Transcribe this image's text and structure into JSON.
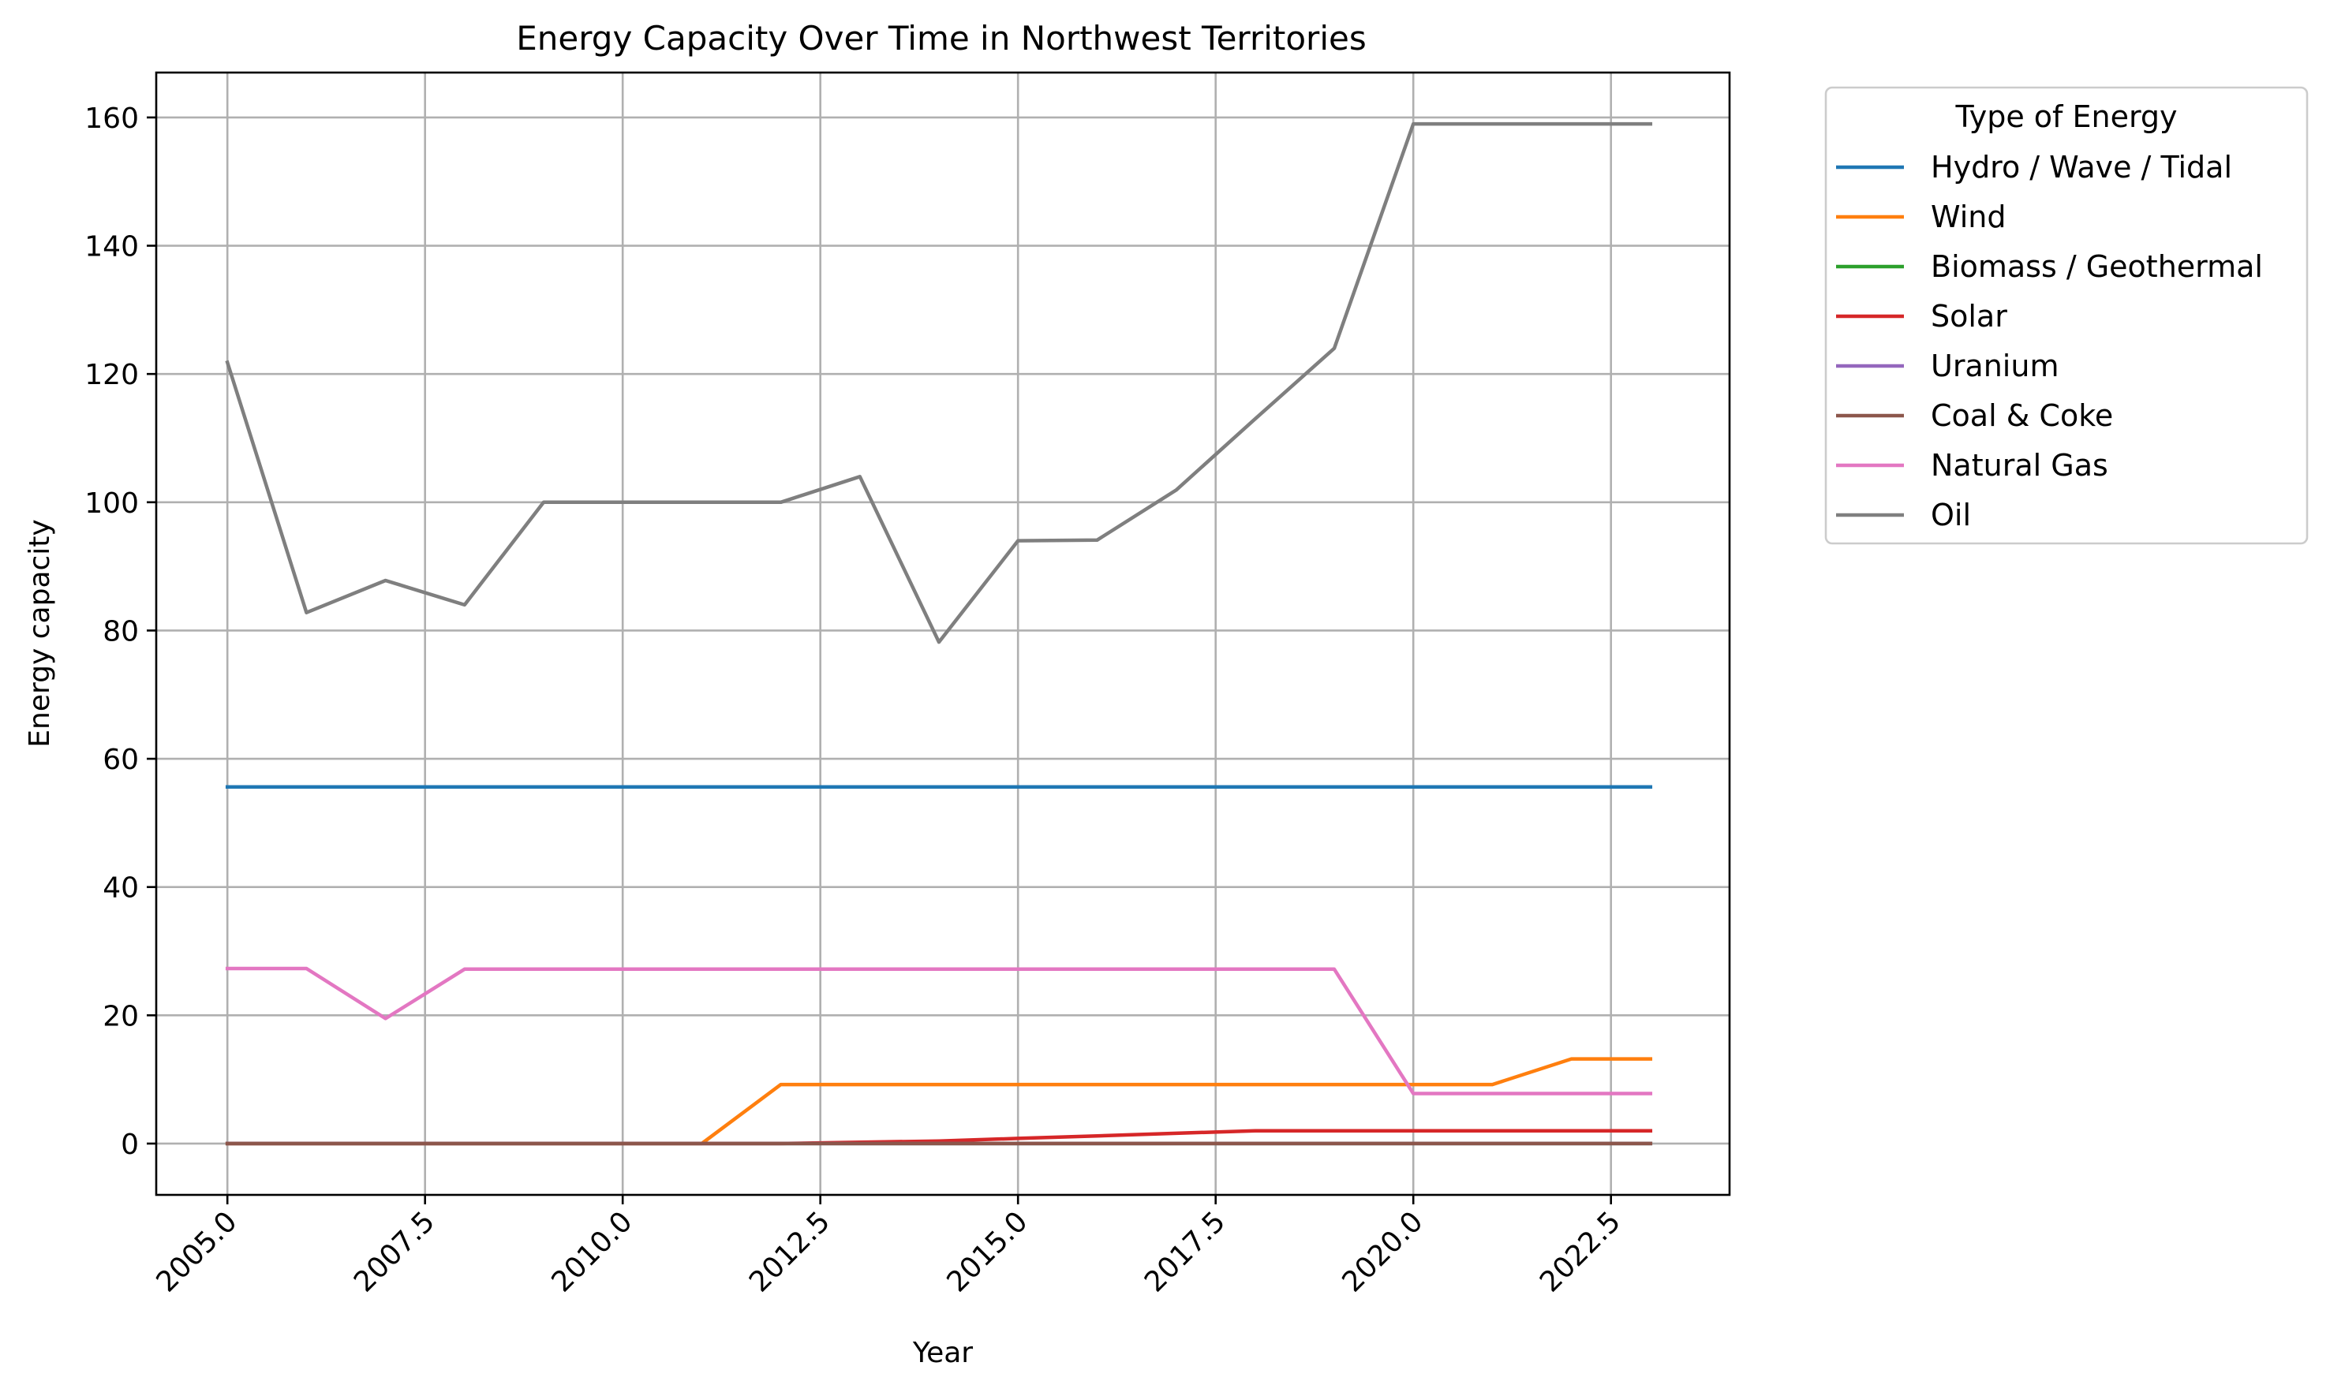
{
  "chart_data": {
    "type": "line",
    "title": "Energy Capacity Over Time in Northwest Territories",
    "xlabel": "Year",
    "ylabel": "Energy capacity",
    "xlim": [
      2004.1,
      2024.0
    ],
    "ylim": [
      -8,
      167
    ],
    "xticks": [
      2005.0,
      2007.5,
      2010.0,
      2012.5,
      2015.0,
      2017.5,
      2020.0,
      2022.5
    ],
    "xtick_labels": [
      "2005.0",
      "2007.5",
      "2010.0",
      "2012.5",
      "2015.0",
      "2017.5",
      "2020.0",
      "2022.5"
    ],
    "yticks": [
      0,
      20,
      40,
      60,
      80,
      100,
      120,
      140,
      160
    ],
    "ytick_labels": [
      "0",
      "20",
      "40",
      "60",
      "80",
      "100",
      "120",
      "140",
      "160"
    ],
    "grid": true,
    "legend": {
      "title": "Type of Energy",
      "placement": "outside upper right"
    },
    "x": [
      2005,
      2006,
      2007,
      2008,
      2009,
      2010,
      2011,
      2012,
      2013,
      2014,
      2015,
      2016,
      2017,
      2018,
      2019,
      2020,
      2021,
      2022,
      2023
    ],
    "series": [
      {
        "name": "Hydro / Wave / Tidal",
        "color": "#1f77b4",
        "values": [
          55.6,
          55.6,
          55.6,
          55.6,
          55.6,
          55.6,
          55.6,
          55.6,
          55.6,
          55.6,
          55.6,
          55.6,
          55.6,
          55.6,
          55.6,
          55.6,
          55.6,
          55.6,
          55.6
        ]
      },
      {
        "name": "Wind",
        "color": "#ff7f0e",
        "values": [
          0,
          0,
          0,
          0,
          0,
          0,
          0,
          9.2,
          9.2,
          9.2,
          9.2,
          9.2,
          9.2,
          9.2,
          9.2,
          9.2,
          9.2,
          13.2,
          13.2
        ]
      },
      {
        "name": "Biomass / Geothermal",
        "color": "#2ca02c",
        "values": [
          0,
          0,
          0,
          0,
          0,
          0,
          0,
          0,
          0,
          0,
          0,
          0,
          0,
          0,
          0,
          0,
          0,
          0,
          0
        ]
      },
      {
        "name": "Solar",
        "color": "#d62728",
        "values": [
          0,
          0,
          0,
          0,
          0,
          0,
          0,
          0,
          0.2,
          0.4,
          0.8,
          1.2,
          1.6,
          2.0,
          2.0,
          2.0,
          2.0,
          2.0,
          2.0
        ]
      },
      {
        "name": "Uranium",
        "color": "#9467bd",
        "values": [
          0,
          0,
          0,
          0,
          0,
          0,
          0,
          0,
          0,
          0,
          0,
          0,
          0,
          0,
          0,
          0,
          0,
          0,
          0
        ]
      },
      {
        "name": "Coal & Coke",
        "color": "#8c564b",
        "values": [
          0,
          0,
          0,
          0,
          0,
          0,
          0,
          0,
          0,
          0,
          0,
          0,
          0,
          0,
          0,
          0,
          0,
          0,
          0
        ]
      },
      {
        "name": "Natural Gas",
        "color": "#e377c2",
        "values": [
          27.3,
          27.3,
          19.5,
          27.2,
          27.2,
          27.2,
          27.2,
          27.2,
          27.2,
          27.2,
          27.2,
          27.2,
          27.2,
          27.2,
          27.2,
          7.8,
          7.8,
          7.8,
          7.8
        ]
      },
      {
        "name": "Oil",
        "color": "#7f7f7f",
        "values": [
          121.8,
          82.8,
          87.8,
          84.0,
          100.0,
          100.0,
          100.0,
          100.0,
          104.0,
          78.2,
          94.0,
          94.1,
          101.9,
          113.0,
          124.0,
          159.0,
          159.0,
          159.0,
          159.0
        ]
      }
    ]
  }
}
